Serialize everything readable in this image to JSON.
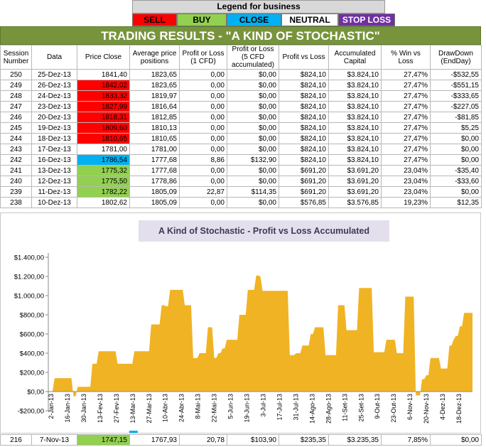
{
  "legend": {
    "title": "Legend for business",
    "items": [
      {
        "label": "SELL",
        "bg": "#ff0000",
        "fg": "#000000",
        "w": 63
      },
      {
        "label": "BUY",
        "bg": "#92d050",
        "fg": "#000000",
        "w": 70
      },
      {
        "label": "CLOSE",
        "bg": "#00b0f0",
        "fg": "#000000",
        "w": 77
      },
      {
        "label": "NEUTRAL",
        "bg": "#ffffff",
        "fg": "#000000",
        "w": 80
      },
      {
        "label": "STOP LOSS",
        "bg": "#7030a0",
        "fg": "#ffffff",
        "w": 80
      }
    ]
  },
  "banner": "TRADING RESULTS - \"A KIND OF STOCHASTIC\"",
  "table": {
    "headers": [
      "Session Number",
      "Data",
      "Price Close",
      "Average price positions",
      "Profit or Loss (1 CFD)",
      "Profit or Loss (5 CFD accumulated)",
      "Profit vs Loss",
      "Accumulated Capital",
      "% Win vs Loss",
      "DrawDown (EndDay)"
    ],
    "rows": [
      {
        "s": "250",
        "d": "25-Dez-13",
        "p": "1841,40",
        "pc": "white",
        "a": "1823,65",
        "pl": "0,00",
        "pl5": "$0,00",
        "pvl": "$824,10",
        "cap": "$3.824,10",
        "win": "27,47%",
        "dd": "-$532,55"
      },
      {
        "s": "249",
        "d": "26-Dez-13",
        "p": "1842,02",
        "pc": "red",
        "a": "1823,65",
        "pl": "0,00",
        "pl5": "$0,00",
        "pvl": "$824,10",
        "cap": "$3.824,10",
        "win": "27,47%",
        "dd": "-$551,15"
      },
      {
        "s": "248",
        "d": "24-Dez-13",
        "p": "1833,32",
        "pc": "red",
        "a": "1819,97",
        "pl": "0,00",
        "pl5": "$0,00",
        "pvl": "$824,10",
        "cap": "$3.824,10",
        "win": "27,47%",
        "dd": "-$333,65"
      },
      {
        "s": "247",
        "d": "23-Dez-13",
        "p": "1827,99",
        "pc": "red",
        "a": "1816,64",
        "pl": "0,00",
        "pl5": "$0,00",
        "pvl": "$824,10",
        "cap": "$3.824,10",
        "win": "27,47%",
        "dd": "-$227,05"
      },
      {
        "s": "246",
        "d": "20-Dez-13",
        "p": "1818,31",
        "pc": "red",
        "a": "1812,85",
        "pl": "0,00",
        "pl5": "$0,00",
        "pvl": "$824,10",
        "cap": "$3.824,10",
        "win": "27,47%",
        "dd": "-$81,85"
      },
      {
        "s": "245",
        "d": "19-Dez-13",
        "p": "1809,60",
        "pc": "red",
        "a": "1810,13",
        "pl": "0,00",
        "pl5": "$0,00",
        "pvl": "$824,10",
        "cap": "$3.824,10",
        "win": "27,47%",
        "dd": "$5,25"
      },
      {
        "s": "244",
        "d": "18-Dez-13",
        "p": "1810,65",
        "pc": "red",
        "a": "1810,65",
        "pl": "0,00",
        "pl5": "$0,00",
        "pvl": "$824,10",
        "cap": "$3.824,10",
        "win": "27,47%",
        "dd": "$0,00"
      },
      {
        "s": "243",
        "d": "17-Dez-13",
        "p": "1781,00",
        "pc": "white",
        "a": "1781,00",
        "pl": "0,00",
        "pl5": "$0,00",
        "pvl": "$824,10",
        "cap": "$3.824,10",
        "win": "27,47%",
        "dd": "$0,00"
      },
      {
        "s": "242",
        "d": "16-Dez-13",
        "p": "1786,54",
        "pc": "blue",
        "a": "1777,68",
        "pl": "8,86",
        "pl5": "$132,90",
        "pvl": "$824,10",
        "cap": "$3.824,10",
        "win": "27,47%",
        "dd": "$0,00"
      },
      {
        "s": "241",
        "d": "13-Dez-13",
        "p": "1775,32",
        "pc": "green",
        "a": "1777,68",
        "pl": "0,00",
        "pl5": "$0,00",
        "pvl": "$691,20",
        "cap": "$3.691,20",
        "win": "23,04%",
        "dd": "-$35,40"
      },
      {
        "s": "240",
        "d": "12-Dez-13",
        "p": "1775,50",
        "pc": "green",
        "a": "1778,86",
        "pl": "0,00",
        "pl5": "$0,00",
        "pvl": "$691,20",
        "cap": "$3.691,20",
        "win": "23,04%",
        "dd": "-$33,60"
      },
      {
        "s": "239",
        "d": "11-Dez-13",
        "p": "1782,22",
        "pc": "green",
        "a": "1805,09",
        "pl": "22,87",
        "pl5": "$114,35",
        "pvl": "$691,20",
        "cap": "$3.691,20",
        "win": "23,04%",
        "dd": "$0,00"
      },
      {
        "s": "238",
        "d": "10-Dez-13",
        "p": "1802,62",
        "pc": "white",
        "a": "1805,09",
        "pl": "0,00",
        "pl5": "$0,00",
        "pvl": "$576,85",
        "cap": "$3.576,85",
        "win": "19,23%",
        "dd": "$12,35"
      }
    ],
    "bottom_row": {
      "s": "216",
      "d": "7-Nov-13",
      "p": "1747,15",
      "pc": "green",
      "a": "1767,93",
      "pl": "20,78",
      "pl5": "$103,90",
      "pvl": "$235,35",
      "cap": "$3.235,35",
      "win": "7,85%",
      "dd": "$0,00"
    }
  },
  "cell_colors": {
    "red": "#ff0000",
    "green": "#92d050",
    "blue": "#00b0f0",
    "white": "#ffffff"
  },
  "chart_data": {
    "type": "area",
    "title": "A Kind of Stochastic - Profit vs Loss Accumulated",
    "color": "#f0b323",
    "ylim": [
      -200,
      1400
    ],
    "y_ticks": [
      "$1.400,00",
      "$1.200,00",
      "$1.000,00",
      "$800,00",
      "$600,00",
      "$400,00",
      "$200,00",
      "$0,00",
      "-$200,00"
    ],
    "y_tick_values": [
      1400,
      1200,
      1000,
      800,
      600,
      400,
      200,
      0,
      -200
    ],
    "x_tick_labels": [
      "2-Jan-13",
      "16-Jan-13",
      "30-Jan-13",
      "13-Fev-13",
      "27-Fev-13",
      "13-Mar-13",
      "27-Mar-13",
      "10-Abr-13",
      "24-Abr-13",
      "8-Mai-13",
      "22-Mai-13",
      "5-Jun-13",
      "19-Jun-13",
      "3-Jul-13",
      "17-Jul-13",
      "31-Jul-13",
      "14-Ago-13",
      "28-Ago-13",
      "11-Set-13",
      "25-Set-13",
      "9-Out-13",
      "23-Out-13",
      "6-Nov-13",
      "20-Nov-13",
      "4-Dez-13",
      "18-Dez-13"
    ],
    "highlight_tick_index": 5,
    "values": [
      0,
      0,
      0,
      140,
      140,
      140,
      140,
      140,
      140,
      140,
      140,
      140,
      -50,
      -50,
      50,
      50,
      50,
      50,
      50,
      50,
      50,
      290,
      290,
      290,
      420,
      420,
      420,
      420,
      420,
      420,
      420,
      420,
      420,
      290,
      290,
      290,
      290,
      290,
      290,
      290,
      290,
      420,
      420,
      420,
      420,
      420,
      420,
      420,
      420,
      700,
      700,
      700,
      700,
      700,
      900,
      900,
      890,
      890,
      1060,
      1060,
      1060,
      1060,
      1060,
      1060,
      1060,
      900,
      900,
      900,
      900,
      350,
      350,
      350,
      400,
      400,
      400,
      400,
      670,
      670,
      670,
      350,
      350,
      400,
      400,
      450,
      450,
      540,
      540,
      540,
      540,
      540,
      540,
      800,
      800,
      800,
      800,
      1060,
      1060,
      1060,
      1060,
      1210,
      1210,
      1200,
      1050,
      1050,
      1050,
      1050,
      1050,
      1050,
      1050,
      1050,
      1050,
      1050,
      1050,
      1050,
      1050,
      380,
      380,
      380,
      400,
      400,
      400,
      480,
      480,
      480,
      480,
      600,
      600,
      670,
      670,
      670,
      670,
      670,
      380,
      380,
      380,
      380,
      380,
      380,
      900,
      900,
      900,
      900,
      640,
      640,
      640,
      640,
      640,
      640,
      1080,
      1080,
      1080,
      1080,
      1080,
      1080,
      1080,
      410,
      410,
      410,
      410,
      410,
      410,
      540,
      540,
      540,
      540,
      540,
      400,
      400,
      400,
      400,
      990,
      990,
      990,
      990,
      990,
      -40,
      -40,
      -40,
      130,
      130,
      170,
      170,
      350,
      350,
      350,
      350,
      350,
      240,
      240,
      240,
      240,
      480,
      480,
      540,
      580,
      580,
      680,
      680,
      820,
      820,
      820,
      820,
      820
    ]
  }
}
